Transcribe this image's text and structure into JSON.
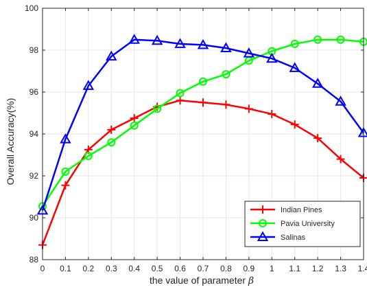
{
  "chart_data": {
    "type": "line",
    "title": "",
    "xlabel_text": "the value of parameter ",
    "xlabel_symbol": "β",
    "ylabel": "Overall Accuracy(%)",
    "xlim": [
      0,
      1.4
    ],
    "ylim": [
      88,
      100
    ],
    "x": [
      0,
      0.1,
      0.2,
      0.3,
      0.4,
      0.5,
      0.6,
      0.7,
      0.8,
      0.9,
      1,
      1.1,
      1.2,
      1.3,
      1.4
    ],
    "x_tick_labels": [
      "0",
      "0.1",
      "0.2",
      "0.3",
      "0.4",
      "0.5",
      "0.6",
      "0.7",
      "0.8",
      "0.9",
      "1",
      "1.1",
      "1.2",
      "1.3",
      "1.4"
    ],
    "y_ticks": [
      88,
      90,
      92,
      94,
      96,
      98,
      100
    ],
    "y_tick_labels": [
      "88",
      "90",
      "92",
      "94",
      "96",
      "98",
      "100"
    ],
    "grid": true,
    "legend_position": "lower-right",
    "series": [
      {
        "name": "Indian Pines",
        "color": "#ff0000",
        "marker": "plus",
        "values": [
          88.7,
          91.55,
          93.25,
          94.2,
          94.75,
          95.3,
          95.6,
          95.5,
          95.4,
          95.2,
          94.95,
          94.45,
          93.8,
          92.8,
          91.9
        ]
      },
      {
        "name": "Pavia University",
        "color": "#00ff00",
        "marker": "circle",
        "values": [
          90.55,
          92.2,
          92.95,
          93.6,
          94.4,
          95.2,
          95.95,
          96.5,
          96.85,
          97.5,
          97.95,
          98.3,
          98.5,
          98.5,
          98.4
        ]
      },
      {
        "name": "Salinas",
        "color": "#0000ff",
        "marker": "triangle",
        "values": [
          90.35,
          93.75,
          96.3,
          97.7,
          98.5,
          98.45,
          98.3,
          98.25,
          98.1,
          97.85,
          97.6,
          97.15,
          96.4,
          95.55,
          94.05
        ]
      }
    ]
  }
}
